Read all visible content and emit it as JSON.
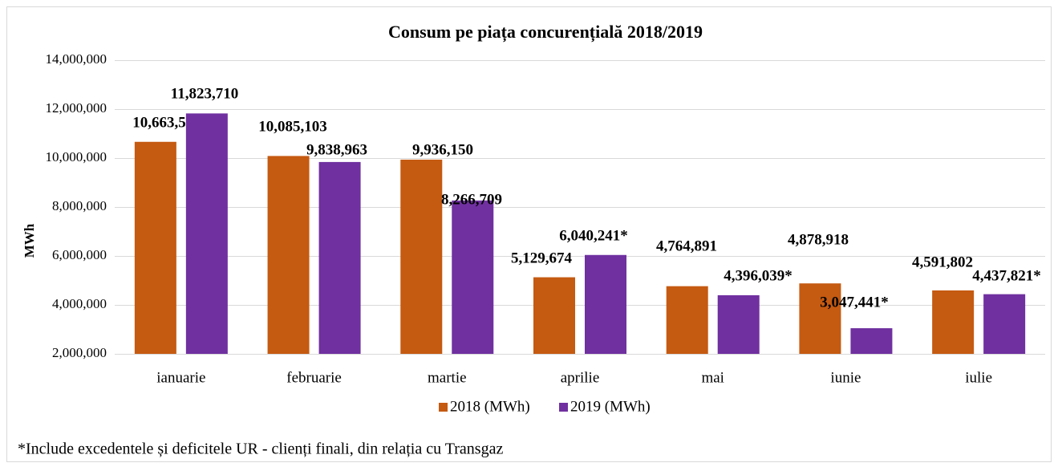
{
  "chart_data": {
    "type": "bar",
    "title": "Consum pe piața concurențială 2018/2019",
    "y_label": "MWh",
    "categories": [
      "ianuarie",
      "februarie",
      "martie",
      "aprilie",
      "mai",
      "iunie",
      "iulie"
    ],
    "series": [
      {
        "name": "2018 (MWh)",
        "color": "#c55a11",
        "values": [
          10663590,
          10085103,
          9936150,
          5129674,
          4764891,
          4878918,
          4591802
        ],
        "value_labels": [
          "10,663,590",
          "10,085,103",
          "9,936,150",
          "5,129,674",
          "4,764,891",
          "4,878,918",
          "4,591,802"
        ]
      },
      {
        "name": "2019 (MWh)",
        "color": "#7030a0",
        "values": [
          11823710,
          9838963,
          8266709,
          6040241,
          4396039,
          3047441,
          4437821
        ],
        "value_labels": [
          "11,823,710",
          "9,838,963",
          "8,266,709",
          "6,040,241*",
          "4,396,039*",
          "3,047,441*",
          "4,437,821*"
        ]
      }
    ],
    "ylim": [
      2000000,
      14000000
    ],
    "yticks": [
      {
        "value": 2000000,
        "label": "2,000,000"
      },
      {
        "value": 4000000,
        "label": "4,000,000"
      },
      {
        "value": 6000000,
        "label": "6,000,000"
      },
      {
        "value": 8000000,
        "label": "8,000,000"
      },
      {
        "value": 10000000,
        "label": "10,000,000"
      },
      {
        "value": 12000000,
        "label": "12,000,000"
      },
      {
        "value": 14000000,
        "label": "14,000,000"
      }
    ],
    "grid": true,
    "legend": "bottom",
    "annotation": "*Include excedentele și deficitele UR - clienți finali, din relația cu Transgaz"
  }
}
